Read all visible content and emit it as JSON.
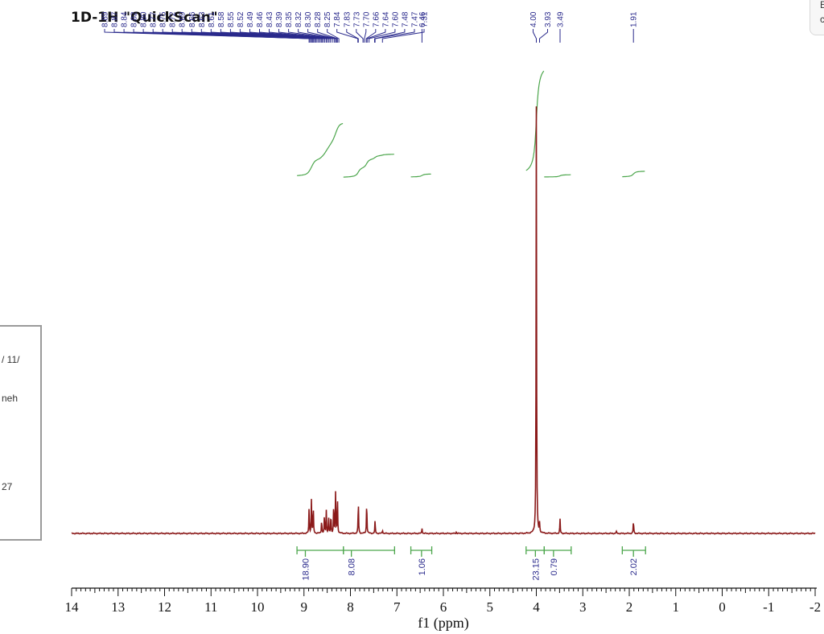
{
  "side_panel": {
    "line1": "/ 11/",
    "line2": "neh",
    "line3": "27"
  },
  "corner_card": {
    "line1": "E",
    "line2": "c"
  },
  "colors": {
    "spectrum": "#8b1a1a",
    "integral_curve": "#4ca64c",
    "integral_bracket": "#4ca64c",
    "peak_labels": "#2a2a8c",
    "axis": "#111111"
  },
  "chart_data": {
    "type": "line",
    "title": "1D-1H \"QuickScan\"",
    "xlabel": "f1 (ppm)",
    "ylabel": "",
    "xlim": [
      14,
      -2
    ],
    "x_reversed": true,
    "grid": false,
    "ticks": [
      "14",
      "13",
      "12",
      "11",
      "10",
      "9",
      "8",
      "7",
      "6",
      "5",
      "4",
      "3",
      "2",
      "1",
      "0",
      "-1",
      "-2"
    ],
    "peak_labels": [
      "8.89",
      "8.87",
      "8.84",
      "8.82",
      "8.80",
      "8.77",
      "8.75",
      "8.72",
      "8.69",
      "8.66",
      "8.63",
      "8.61",
      "8.58",
      "8.55",
      "8.52",
      "8.49",
      "8.46",
      "8.43",
      "8.39",
      "8.35",
      "8.32",
      "8.30",
      "8.28",
      "8.25",
      "7.84",
      "7.83",
      "7.73",
      "7.70",
      "7.66",
      "7.64",
      "7.60",
      "7.48",
      "7.47",
      "7.31",
      "6.46",
      "4.00",
      "3.93",
      "3.49",
      "1.91"
    ],
    "integrals": [
      {
        "label": "18.90",
        "from": 9.15,
        "to": 8.15,
        "center": 8.97
      },
      {
        "label": "8.08",
        "from": 8.15,
        "to": 7.05,
        "center": 7.98
      },
      {
        "label": "1.06",
        "from": 6.7,
        "to": 6.25,
        "center": 6.47
      },
      {
        "label": "23.15",
        "from": 4.22,
        "to": 3.83,
        "center": 4.02
      },
      {
        "label": "0.79",
        "from": 3.83,
        "to": 3.25,
        "center": 3.63
      },
      {
        "label": "2.02",
        "from": 2.15,
        "to": 1.65,
        "center": 1.91
      }
    ],
    "peaks": [
      {
        "ppm": 8.89,
        "height": 0.06
      },
      {
        "ppm": 8.84,
        "height": 0.078
      },
      {
        "ppm": 8.8,
        "height": 0.067
      },
      {
        "ppm": 8.62,
        "height": 0.033
      },
      {
        "ppm": 8.56,
        "height": 0.042
      },
      {
        "ppm": 8.52,
        "height": 0.054
      },
      {
        "ppm": 8.47,
        "height": 0.04
      },
      {
        "ppm": 8.42,
        "height": 0.044
      },
      {
        "ppm": 8.36,
        "height": 0.074
      },
      {
        "ppm": 8.32,
        "height": 0.094
      },
      {
        "ppm": 8.28,
        "height": 0.09
      },
      {
        "ppm": 7.83,
        "height": 0.08
      },
      {
        "ppm": 7.65,
        "height": 0.08
      },
      {
        "ppm": 7.47,
        "height": 0.03
      },
      {
        "ppm": 7.31,
        "height": 0.008
      },
      {
        "ppm": 6.46,
        "height": 0.013
      },
      {
        "ppm": 5.72,
        "height": 0.004
      },
      {
        "ppm": 4.0,
        "height": 1.0
      },
      {
        "ppm": 3.93,
        "height": 0.022
      },
      {
        "ppm": 3.49,
        "height": 0.034
      },
      {
        "ppm": 2.28,
        "height": 0.005
      },
      {
        "ppm": 1.91,
        "height": 0.031
      }
    ]
  }
}
